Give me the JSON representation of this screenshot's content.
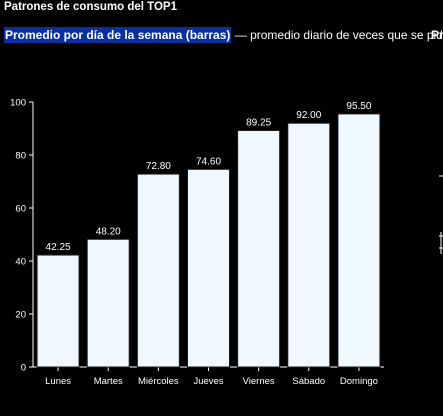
{
  "header": {
    "title": "Patrones de consumo del TOP1",
    "subtitle_highlight": "Promedio por día de la semana (barras)",
    "subtitle_rest": " — promedio diario de veces que se pide",
    "next_panel_title": "Pr"
  },
  "colors": {
    "background": "#000000",
    "bar_fill": "#f0f8ff",
    "bar_stroke": "#1a1a1a",
    "axis": "#ffffff",
    "text": "#ffffff",
    "highlight": "#0a2fa0"
  },
  "chart_data": {
    "type": "bar",
    "categories": [
      "Lunes",
      "Martes",
      "Miércoles",
      "Jueves",
      "Viernes",
      "Sábado",
      "Domingo"
    ],
    "values": [
      42.25,
      48.2,
      72.8,
      74.6,
      89.25,
      92.0,
      95.5
    ],
    "data_labels": [
      "42.25",
      "48.20",
      "72.80",
      "74.60",
      "89.25",
      "92.00",
      "95.50"
    ],
    "ylim": [
      0,
      100
    ],
    "yticks": [
      0,
      20,
      40,
      60,
      80,
      100
    ],
    "grid": false,
    "legend": "none"
  }
}
